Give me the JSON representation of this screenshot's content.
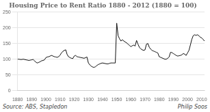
{
  "chart_data": {
    "type": "line",
    "title": "Housing Price to Rent Ratio 1880 - 2012 (1880 = 100)",
    "annotations": [
      "Source: ABS, Stapledon",
      "Philip Soos"
    ],
    "x": [
      1880,
      1881,
      1882,
      1883,
      1884,
      1885,
      1886,
      1887,
      1888,
      1889,
      1890,
      1891,
      1892,
      1893,
      1894,
      1895,
      1896,
      1897,
      1898,
      1899,
      1900,
      1901,
      1902,
      1903,
      1904,
      1905,
      1906,
      1907,
      1908,
      1909,
      1910,
      1911,
      1912,
      1913,
      1914,
      1915,
      1916,
      1917,
      1918,
      1919,
      1920,
      1921,
      1922,
      1923,
      1924,
      1925,
      1926,
      1927,
      1928,
      1929,
      1930,
      1931,
      1932,
      1933,
      1934,
      1935,
      1936,
      1937,
      1938,
      1939,
      1940,
      1941,
      1942,
      1943,
      1944,
      1945,
      1946,
      1947,
      1948,
      1949,
      1950,
      1951,
      1952,
      1953,
      1954,
      1955,
      1956,
      1957,
      1958,
      1959,
      1960,
      1961,
      1962,
      1963,
      1964,
      1965,
      1966,
      1967,
      1968,
      1969,
      1970,
      1971,
      1972,
      1973,
      1974,
      1975,
      1976,
      1977,
      1978,
      1979,
      1980,
      1981,
      1982,
      1983,
      1984,
      1985,
      1986,
      1987,
      1988,
      1989,
      1990,
      1991,
      1992,
      1993,
      1994,
      1995,
      1996,
      1997,
      1998,
      1999,
      2000,
      2001,
      2002,
      2003,
      2004,
      2005,
      2006,
      2007,
      2008,
      2009,
      2010,
      2011,
      2012
    ],
    "values": [
      100,
      100,
      99,
      99,
      100,
      99,
      98,
      97,
      96,
      97,
      98,
      99,
      95,
      90,
      88,
      90,
      92,
      95,
      96,
      98,
      105,
      107,
      108,
      110,
      112,
      110,
      108,
      107,
      106,
      108,
      113,
      120,
      125,
      128,
      130,
      115,
      108,
      105,
      103,
      102,
      110,
      112,
      108,
      107,
      106,
      105,
      104,
      103,
      105,
      107,
      88,
      82,
      78,
      75,
      74,
      76,
      80,
      83,
      85,
      87,
      88,
      87,
      86,
      85,
      85,
      87,
      88,
      88,
      88,
      88,
      215,
      175,
      165,
      158,
      162,
      158,
      155,
      152,
      148,
      144,
      140,
      143,
      145,
      142,
      160,
      148,
      138,
      133,
      130,
      128,
      130,
      148,
      150,
      138,
      132,
      128,
      126,
      124,
      122,
      120,
      108,
      106,
      104,
      102,
      100,
      100,
      103,
      107,
      122,
      121,
      118,
      115,
      112,
      110,
      111,
      112,
      114,
      118,
      116,
      112,
      120,
      128,
      145,
      163,
      175,
      178,
      176,
      178,
      175,
      170,
      168,
      163,
      158
    ],
    "color": "#111111",
    "xlim": [
      1880,
      2012
    ],
    "xticks": [
      1880,
      1890,
      1900,
      1910,
      1920,
      1930,
      1940,
      1950,
      1960,
      1970,
      1980,
      1990,
      2000,
      2010
    ],
    "ylim": [
      0,
      250
    ],
    "yticks": [
      0,
      50,
      100,
      150,
      200,
      250
    ],
    "grid": "y"
  }
}
